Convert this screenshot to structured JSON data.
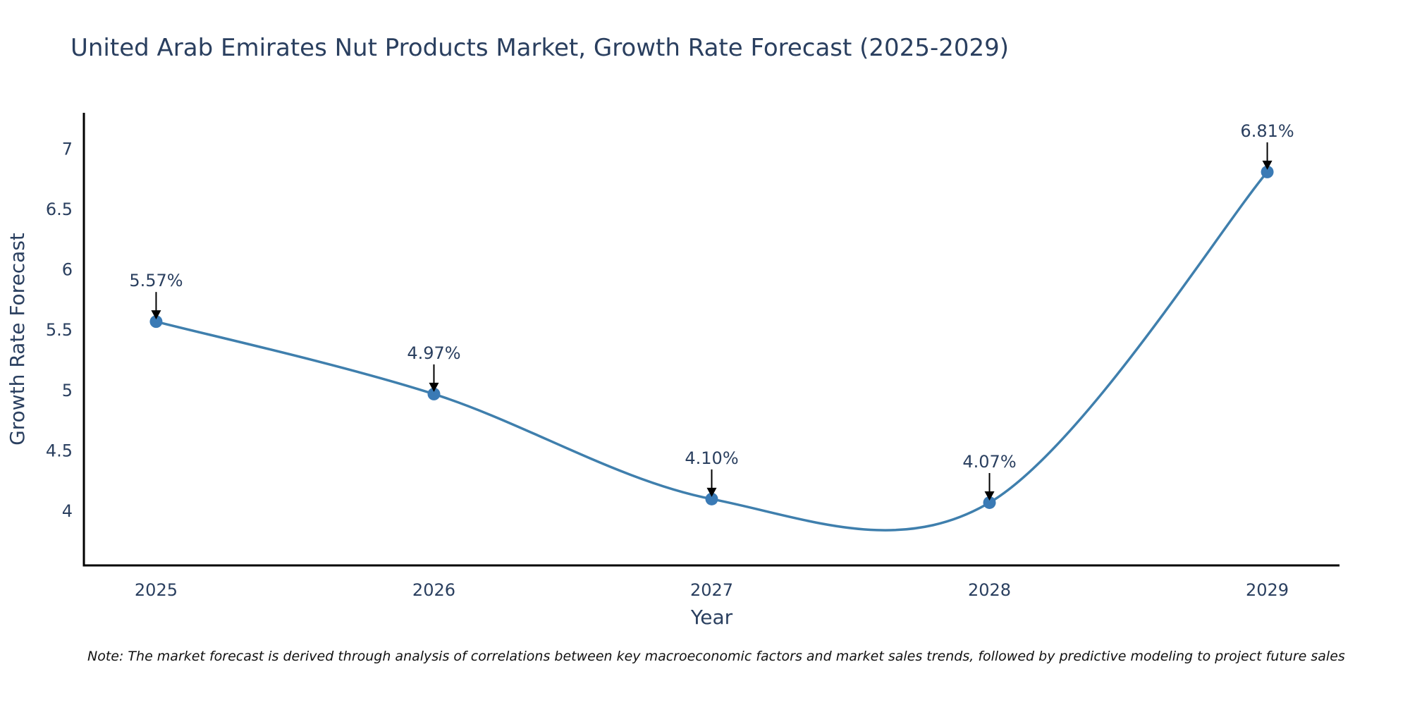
{
  "chart_data": {
    "type": "line",
    "title": "United Arab Emirates Nut Products Market, Growth Rate Forecast (2025-2029)",
    "xlabel": "Year",
    "ylabel": "Growth Rate Forecast",
    "categories": [
      "2025",
      "2026",
      "2027",
      "2028",
      "2029"
    ],
    "x": [
      2025,
      2026,
      2027,
      2028,
      2029
    ],
    "series": [
      {
        "name": "Growth Rate Forecast",
        "values": [
          5.57,
          4.97,
          4.1,
          4.07,
          6.81
        ],
        "color": "#3f7fad",
        "marker_color": "#3a7ab5",
        "line_shape": "spline"
      }
    ],
    "annotations": [
      "5.57%",
      "4.97%",
      "4.10%",
      "4.07%",
      "6.81%"
    ],
    "yticks": [
      4,
      4.5,
      5,
      5.5,
      6,
      6.5,
      7
    ],
    "ytick_labels": [
      "4",
      "4.5",
      "5",
      "5.5",
      "6",
      "6.5",
      "7"
    ],
    "ylim": [
      3.55,
      7.3
    ],
    "xlim": [
      2024.74,
      2029.26
    ],
    "grid": false,
    "legend": "none"
  },
  "note": "Note: The market forecast is derived through analysis of correlations between key macroeconomic factors and market sales trends, followed by predictive modeling to project future sales"
}
